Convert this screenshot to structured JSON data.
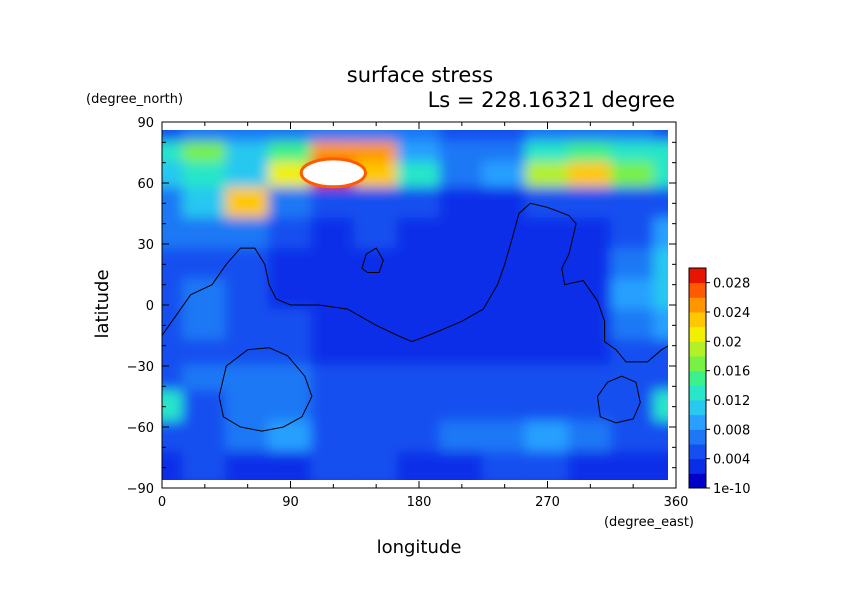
{
  "chart_data": {
    "type": "heatmap",
    "title": "surface stress",
    "subtitle": "Ls = 228.16321 degree",
    "xlabel": "longitude",
    "ylabel": "latitude",
    "x_unit": "(degree_east)",
    "y_unit": "(degree_north)",
    "xlim": [
      0,
      360
    ],
    "ylim": [
      -90,
      90
    ],
    "x_ticks": [
      "0",
      "90",
      "180",
      "270",
      "360"
    ],
    "y_ticks": [
      "90",
      "60",
      "30",
      "0",
      "−30",
      "−60",
      "−90"
    ],
    "colorbar": {
      "labels": [
        "1e-10",
        "0.004",
        "0.008",
        "0.012",
        "0.016",
        "0.02",
        "0.024",
        "0.028"
      ],
      "range": [
        0,
        0.03
      ],
      "colormap": [
        "#0000c8",
        "#0a2ee8",
        "#1450f0",
        "#1e78f5",
        "#28a0ff",
        "#28c8f0",
        "#28e6c8",
        "#3cf08c",
        "#78f046",
        "#b4f028",
        "#f0f000",
        "#ffc800",
        "#ff9600",
        "#ff5a00",
        "#e61400"
      ],
      "over_color": "#ffffff"
    },
    "field": {
      "rows_lat": [
        85,
        75,
        65,
        50,
        35,
        20,
        5,
        -10,
        -25,
        -35,
        -50,
        -65,
        -80
      ],
      "cols_lon": [
        0,
        30,
        60,
        90,
        120,
        150,
        180,
        210,
        240,
        270,
        300,
        330,
        360
      ],
      "values": [
        [
          0.005,
          0.006,
          0.006,
          0.006,
          0.006,
          0.006,
          0.006,
          0.005,
          0.005,
          0.006,
          0.006,
          0.006,
          0.005
        ],
        [
          0.012,
          0.016,
          0.01,
          0.014,
          0.024,
          0.024,
          0.008,
          0.006,
          0.006,
          0.012,
          0.014,
          0.012,
          0.012
        ],
        [
          0.011,
          0.013,
          0.01,
          0.02,
          0.031,
          0.022,
          0.012,
          0.007,
          0.008,
          0.019,
          0.022,
          0.017,
          0.012
        ],
        [
          0.006,
          0.01,
          0.022,
          0.006,
          0.005,
          0.004,
          0.004,
          0.003,
          0.003,
          0.004,
          0.004,
          0.004,
          0.005
        ],
        [
          0.006,
          0.006,
          0.007,
          0.004,
          0.003,
          0.005,
          0.003,
          0.002,
          0.002,
          0.002,
          0.003,
          0.004,
          0.008
        ],
        [
          0.004,
          0.005,
          0.004,
          0.003,
          0.002,
          0.002,
          0.002,
          0.002,
          0.002,
          0.002,
          0.003,
          0.007,
          0.01
        ],
        [
          0.004,
          0.006,
          0.005,
          0.003,
          0.002,
          0.002,
          0.002,
          0.002,
          0.002,
          0.002,
          0.003,
          0.008,
          0.011
        ],
        [
          0.005,
          0.006,
          0.005,
          0.004,
          0.003,
          0.002,
          0.002,
          0.002,
          0.002,
          0.002,
          0.003,
          0.006,
          0.008
        ],
        [
          0.004,
          0.005,
          0.004,
          0.004,
          0.003,
          0.003,
          0.002,
          0.002,
          0.002,
          0.002,
          0.003,
          0.004,
          0.004
        ],
        [
          0.005,
          0.006,
          0.007,
          0.006,
          0.004,
          0.004,
          0.004,
          0.004,
          0.004,
          0.004,
          0.005,
          0.005,
          0.005
        ],
        [
          0.012,
          0.005,
          0.006,
          0.007,
          0.004,
          0.004,
          0.005,
          0.004,
          0.005,
          0.004,
          0.004,
          0.004,
          0.012
        ],
        [
          0.005,
          0.005,
          0.007,
          0.009,
          0.005,
          0.005,
          0.005,
          0.006,
          0.007,
          0.009,
          0.006,
          0.005,
          0.005
        ],
        [
          0.003,
          0.004,
          0.003,
          0.003,
          0.004,
          0.004,
          0.003,
          0.003,
          0.004,
          0.004,
          0.003,
          0.003,
          0.003
        ]
      ]
    },
    "topography_contours": [
      [
        [
          0,
          -15
        ],
        [
          10,
          -5
        ],
        [
          20,
          5
        ],
        [
          35,
          10
        ],
        [
          45,
          20
        ],
        [
          55,
          28
        ],
        [
          65,
          28
        ],
        [
          72,
          20
        ],
        [
          75,
          10
        ],
        [
          80,
          3
        ],
        [
          90,
          0
        ],
        [
          110,
          0
        ],
        [
          130,
          -2
        ],
        [
          150,
          -10
        ],
        [
          165,
          -15
        ],
        [
          175,
          -18
        ],
        [
          190,
          -14
        ],
        [
          210,
          -8
        ],
        [
          225,
          -2
        ],
        [
          235,
          10
        ],
        [
          240,
          20
        ],
        [
          245,
          32
        ],
        [
          250,
          45
        ],
        [
          258,
          50
        ],
        [
          270,
          48
        ],
        [
          285,
          44
        ],
        [
          290,
          40
        ],
        [
          285,
          25
        ],
        [
          280,
          18
        ],
        [
          282,
          10
        ],
        [
          295,
          12
        ],
        [
          305,
          2
        ],
        [
          310,
          -8
        ],
        [
          310,
          -18
        ],
        [
          318,
          -22
        ],
        [
          325,
          -28
        ],
        [
          340,
          -28
        ],
        [
          350,
          -22
        ],
        [
          360,
          -18
        ]
      ],
      [
        [
          140,
          18
        ],
        [
          143,
          25
        ],
        [
          150,
          28
        ],
        [
          155,
          22
        ],
        [
          152,
          16
        ],
        [
          144,
          16
        ],
        [
          140,
          18
        ]
      ],
      [
        [
          40,
          -45
        ],
        [
          45,
          -30
        ],
        [
          60,
          -22
        ],
        [
          75,
          -21
        ],
        [
          88,
          -25
        ],
        [
          100,
          -35
        ],
        [
          105,
          -45
        ],
        [
          98,
          -55
        ],
        [
          85,
          -60
        ],
        [
          70,
          -62
        ],
        [
          55,
          -60
        ],
        [
          43,
          -55
        ],
        [
          40,
          -45
        ]
      ],
      [
        [
          305,
          -45
        ],
        [
          312,
          -38
        ],
        [
          322,
          -35
        ],
        [
          332,
          -38
        ],
        [
          335,
          -48
        ],
        [
          330,
          -56
        ],
        [
          318,
          -58
        ],
        [
          307,
          -55
        ],
        [
          305,
          -45
        ]
      ]
    ]
  }
}
